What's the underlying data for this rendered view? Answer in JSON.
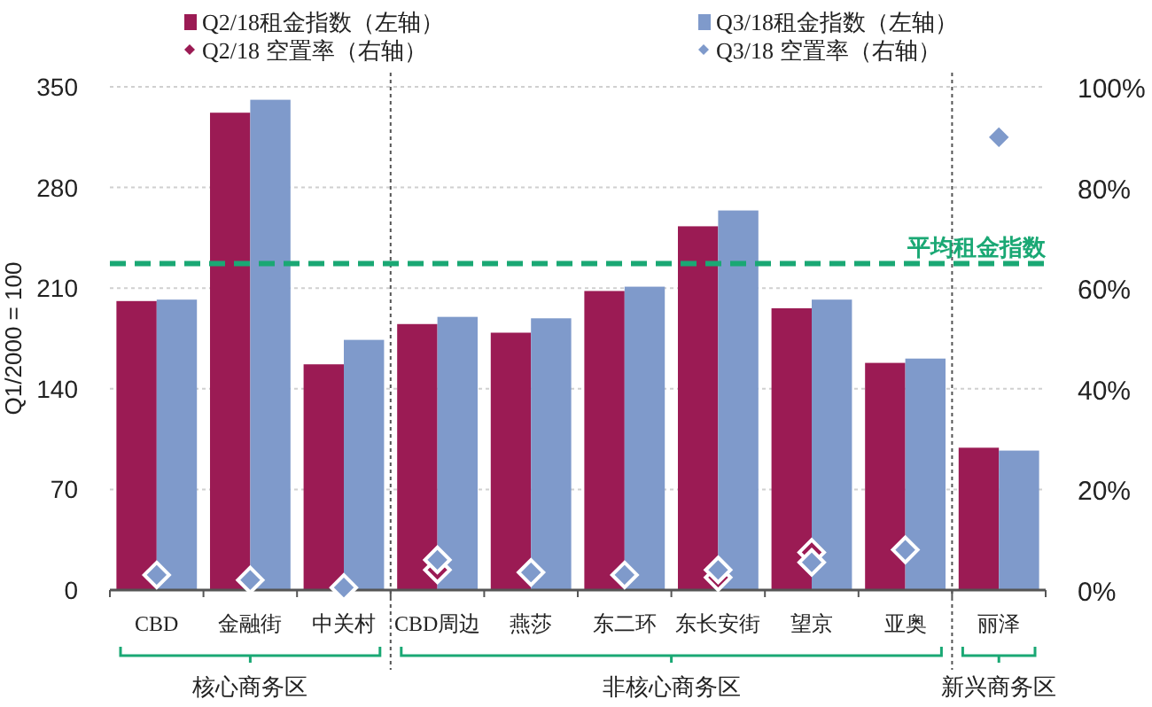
{
  "chart_data": {
    "type": "bar",
    "ylabel": "Q1/2000 = 100",
    "categories": [
      "CBD",
      "金融街",
      "中关村",
      "CBD周边",
      "燕莎",
      "东二环",
      "东长安街",
      "望京",
      "亚奥",
      "丽泽"
    ],
    "series": [
      {
        "name": "Q2/18租金指数（左轴）",
        "axis": "y",
        "color": "#9b1b54",
        "values": [
          201,
          332,
          157,
          185,
          179,
          208,
          253,
          196,
          158,
          99
        ]
      },
      {
        "name": "Q3/18租金指数（左轴）",
        "axis": "y",
        "color": "#7f9acb",
        "values": [
          202,
          341,
          174,
          190,
          189,
          211,
          264,
          202,
          161,
          97
        ]
      },
      {
        "name": "Q2/18 空置率（右轴）",
        "type": "scatter",
        "axis": "y2",
        "marker": "diamond",
        "color": "#9b1b54",
        "values": [
          null,
          null,
          null,
          4,
          null,
          null,
          2.5,
          7.5,
          null,
          null
        ]
      },
      {
        "name": "Q3/18 空置率（右轴）",
        "type": "scatter",
        "axis": "y2",
        "marker": "diamond",
        "color": "#7f9acb",
        "values": [
          3,
          2,
          0.5,
          6,
          3.5,
          3,
          4,
          5.5,
          8,
          90
        ]
      }
    ],
    "ylim": [
      0,
      350
    ],
    "yticks": [
      0,
      70,
      140,
      210,
      280,
      350
    ],
    "y2lim": [
      0,
      100
    ],
    "y2ticks": [
      {
        "value": 0,
        "label": "0%"
      },
      {
        "value": 20,
        "label": "20%"
      },
      {
        "value": 40,
        "label": "40%"
      },
      {
        "value": 60,
        "label": "60%"
      },
      {
        "value": 80,
        "label": "80%"
      },
      {
        "value": 100,
        "label": "100%"
      }
    ],
    "ref_lines": [
      {
        "axis": "y",
        "value": 227,
        "label": "平均租金指数",
        "color": "#1aa874",
        "line_style": "dashed"
      }
    ],
    "annotations": [
      "核心商务区",
      "非核心商务区",
      "新兴商务区"
    ],
    "grid": "y",
    "legend": "top"
  }
}
